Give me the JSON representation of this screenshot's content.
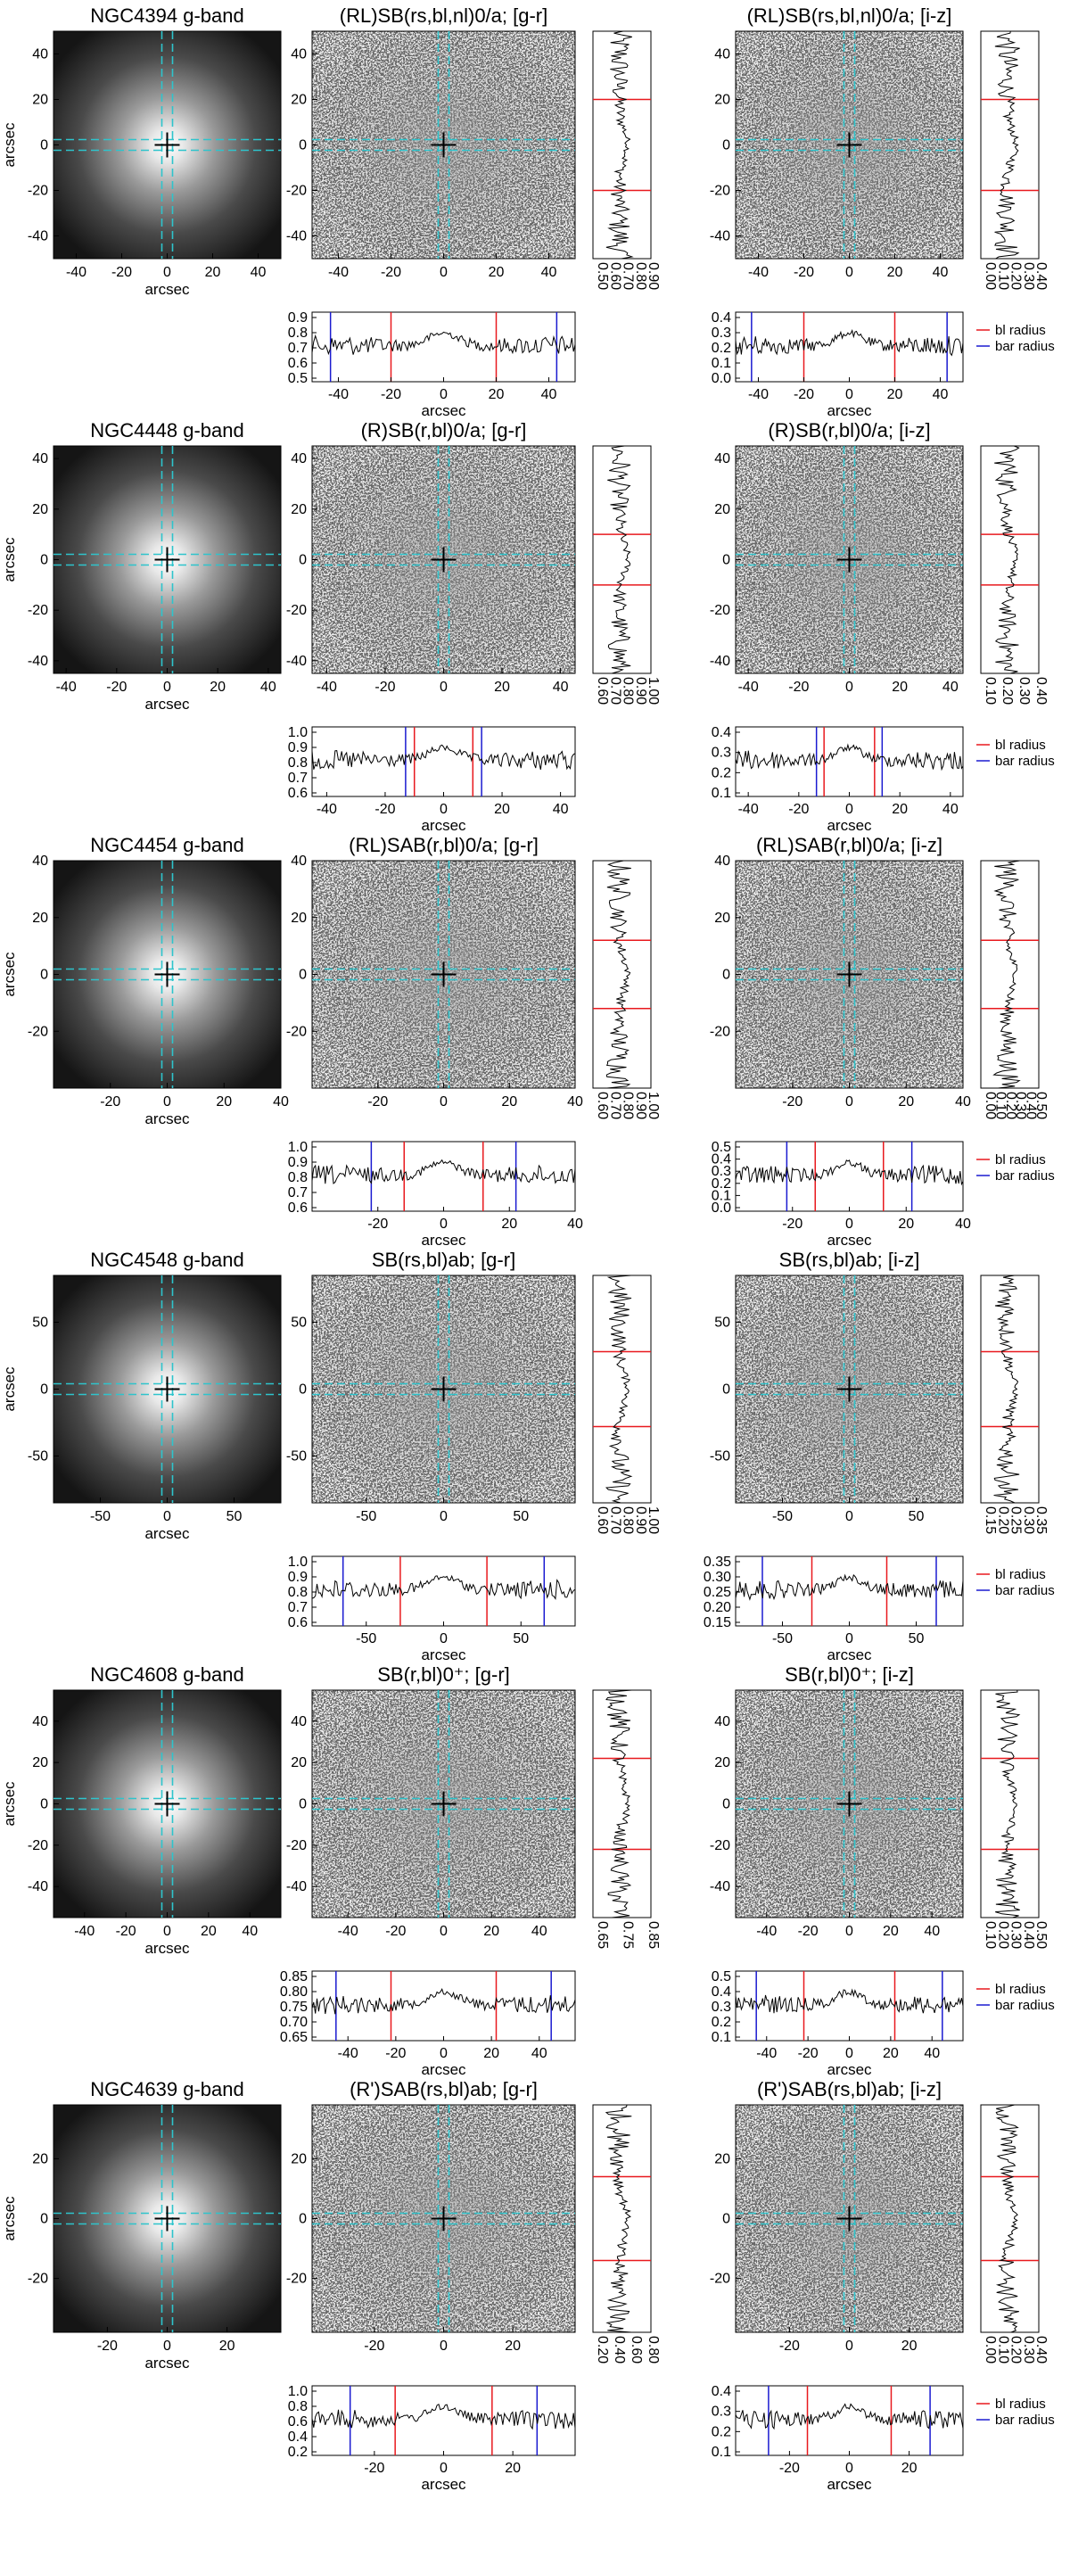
{
  "figure": {
    "axis_label": "arcsec",
    "legend": [
      {
        "label": "bl radius",
        "color": "#e8191e"
      },
      {
        "label": "bar radius",
        "color": "#1a1ad0"
      }
    ],
    "colors": {
      "crosshair": "#2ec4cc",
      "bl_line": "#e8191e",
      "bar_line": "#1a1ad0",
      "profile": "#000000"
    },
    "rows": [
      {
        "galaxy": "NGC4394",
        "gband_title": "NGC4394 g-band",
        "type": "(RL)SB(rs,bl,nl)0/a",
        "gr_title": "(RL)SB(rs,bl,nl)0/a; [g-r]",
        "iz_title": "(RL)SB(rs,bl,nl)0/a; [i-z]",
        "range": 50,
        "ticks": [
          "-40",
          "-20",
          "0",
          "20",
          "40"
        ],
        "bl_radius": 20,
        "bar_radius": 43,
        "gr_ticks": [
          "0.50",
          "0.60",
          "0.70",
          "0.80",
          "0.90"
        ],
        "iz_ticks": [
          "0.00",
          "0.10",
          "0.20",
          "0.30",
          "0.40"
        ],
        "gr_ticks_bottom": [
          "0.9",
          "0.8",
          "0.7",
          "0.6",
          "0.5"
        ],
        "iz_ticks_bottom": [
          "0.4",
          "0.3",
          "0.2",
          "0.1",
          "0.0"
        ]
      },
      {
        "galaxy": "NGC4448",
        "gband_title": "NGC4448 g-band",
        "type": "(R)SB(r,bl)0/a",
        "gr_title": "(R)SB(r,bl)0/a; [g-r]",
        "iz_title": "(R)SB(r,bl)0/a; [i-z]",
        "range": 45,
        "ticks": [
          "-40",
          "-20",
          "0",
          "20",
          "40"
        ],
        "bl_radius": 10,
        "bar_radius": 13,
        "gr_ticks": [
          "0.60",
          "0.70",
          "0.80",
          "0.90",
          "1.00"
        ],
        "iz_ticks": [
          "0.10",
          "0.20",
          "0.30",
          "0.40"
        ],
        "gr_ticks_bottom": [
          "1.0",
          "0.9",
          "0.8",
          "0.7",
          "0.6"
        ],
        "iz_ticks_bottom": [
          "0.4",
          "0.3",
          "0.2",
          "0.1"
        ]
      },
      {
        "galaxy": "NGC4454",
        "gband_title": "NGC4454 g-band",
        "type": "(RL)SAB(r,bl)0/a",
        "gr_title": "(RL)SAB(r,bl)0/a; [g-r]",
        "iz_title": "(RL)SAB(r,bl)0/a; [i-z]",
        "range": 40,
        "ticks": [
          "-20",
          "0",
          "20",
          "40"
        ],
        "bl_radius": 12,
        "bar_radius": 22,
        "gr_ticks": [
          "0.60",
          "0.70",
          "0.80",
          "0.90",
          "1.00"
        ],
        "iz_ticks": [
          "0.00",
          "0.10",
          "0.20",
          "0.30",
          "0.40",
          "0.50"
        ],
        "gr_ticks_bottom": [
          "1.0",
          "0.9",
          "0.8",
          "0.7",
          "0.6"
        ],
        "iz_ticks_bottom": [
          "0.5",
          "0.4",
          "0.3",
          "0.2",
          "0.1",
          "0.0"
        ]
      },
      {
        "galaxy": "NGC4548",
        "gband_title": "NGC4548 g-band",
        "type": "SB(rs,bl)ab",
        "gr_title": "SB(rs,bl)ab; [g-r]",
        "iz_title": "SB(rs,bl)ab; [i-z]",
        "range": 85,
        "ticks": [
          "-50",
          "0",
          "50"
        ],
        "bl_radius": 28,
        "bar_radius": 65,
        "gr_ticks": [
          "0.60",
          "0.70",
          "0.80",
          "0.90",
          "1.00"
        ],
        "iz_ticks": [
          "0.15",
          "0.20",
          "0.25",
          "0.30",
          "0.35"
        ],
        "gr_ticks_bottom": [
          "1.0",
          "0.9",
          "0.8",
          "0.7",
          "0.6"
        ],
        "iz_ticks_bottom": [
          "0.35",
          "0.30",
          "0.25",
          "0.20",
          "0.15"
        ]
      },
      {
        "galaxy": "NGC4608",
        "gband_title": "NGC4608 g-band",
        "type": "SB(r,bl)0⁺",
        "gr_title": "SB(r,bl)0⁺; [g-r]",
        "iz_title": "SB(r,bl)0⁺; [i-z]",
        "range": 55,
        "ticks": [
          "-40",
          "-20",
          "0",
          "20",
          "40"
        ],
        "bl_radius": 22,
        "bar_radius": 45,
        "gr_ticks": [
          "0.65",
          "0.75",
          "0.85"
        ],
        "iz_ticks": [
          "0.10",
          "0.20",
          "0.30",
          "0.40",
          "0.50"
        ],
        "gr_ticks_bottom": [
          "0.85",
          "0.80",
          "0.75",
          "0.70",
          "0.65"
        ],
        "iz_ticks_bottom": [
          "0.5",
          "0.4",
          "0.3",
          "0.2",
          "0.1"
        ]
      },
      {
        "galaxy": "NGC4639",
        "gband_title": "NGC4639 g-band",
        "type": "(R')SAB(rs,bl)ab",
        "gr_title": "(R')SAB(rs,bl)ab; [g-r]",
        "iz_title": "(R')SAB(rs,bl)ab; [i-z]",
        "range": 38,
        "ticks": [
          "-20",
          "0",
          "20"
        ],
        "bl_radius": 14,
        "bar_radius": 27,
        "gr_ticks": [
          "0.20",
          "0.40",
          "0.60",
          "0.80"
        ],
        "iz_ticks": [
          "0.00",
          "0.10",
          "0.20",
          "0.30",
          "0.40"
        ],
        "gr_ticks_bottom": [
          "1.0",
          "0.8",
          "0.6",
          "0.4",
          "0.2"
        ],
        "iz_ticks_bottom": [
          "0.4",
          "0.3",
          "0.2",
          "0.1"
        ]
      }
    ]
  }
}
